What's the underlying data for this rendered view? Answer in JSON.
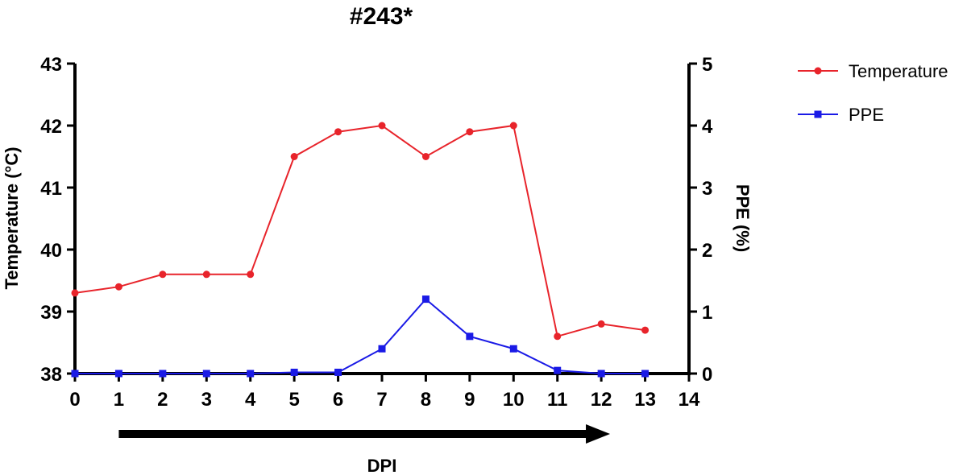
{
  "chart_data": {
    "type": "line",
    "title": "#243*",
    "xlabel": "DPI",
    "ylabel_left": "Temperature (°C)",
    "ylabel_right": "PPE (%)",
    "x": [
      0,
      1,
      2,
      3,
      4,
      5,
      6,
      7,
      8,
      9,
      10,
      11,
      12,
      13
    ],
    "xlim": [
      0,
      14
    ],
    "xticks": [
      "0",
      "1",
      "2",
      "3",
      "4",
      "5",
      "6",
      "7",
      "8",
      "9",
      "10",
      "11",
      "12",
      "13",
      "14"
    ],
    "ylim_left": [
      38,
      43
    ],
    "yticks_left": [
      "38",
      "39",
      "40",
      "41",
      "42",
      "43"
    ],
    "ylim_right": [
      0,
      5
    ],
    "yticks_right": [
      "0",
      "1",
      "2",
      "3",
      "4",
      "5"
    ],
    "arrow_range": [
      1,
      12.2
    ],
    "legend_position": "top-right",
    "series": [
      {
        "name": "Temperature",
        "axis": "left",
        "color": "#e8242b",
        "marker": "circle",
        "values": [
          39.3,
          39.4,
          39.6,
          39.6,
          39.6,
          41.5,
          41.9,
          42.0,
          41.5,
          41.9,
          42.0,
          38.6,
          38.8,
          38.7
        ]
      },
      {
        "name": "PPE",
        "axis": "right",
        "color": "#1a1ae6",
        "marker": "square",
        "values": [
          0,
          0,
          0,
          0,
          0,
          0.02,
          0.02,
          0.4,
          1.2,
          0.6,
          0.4,
          0.05,
          0,
          0
        ]
      }
    ]
  }
}
